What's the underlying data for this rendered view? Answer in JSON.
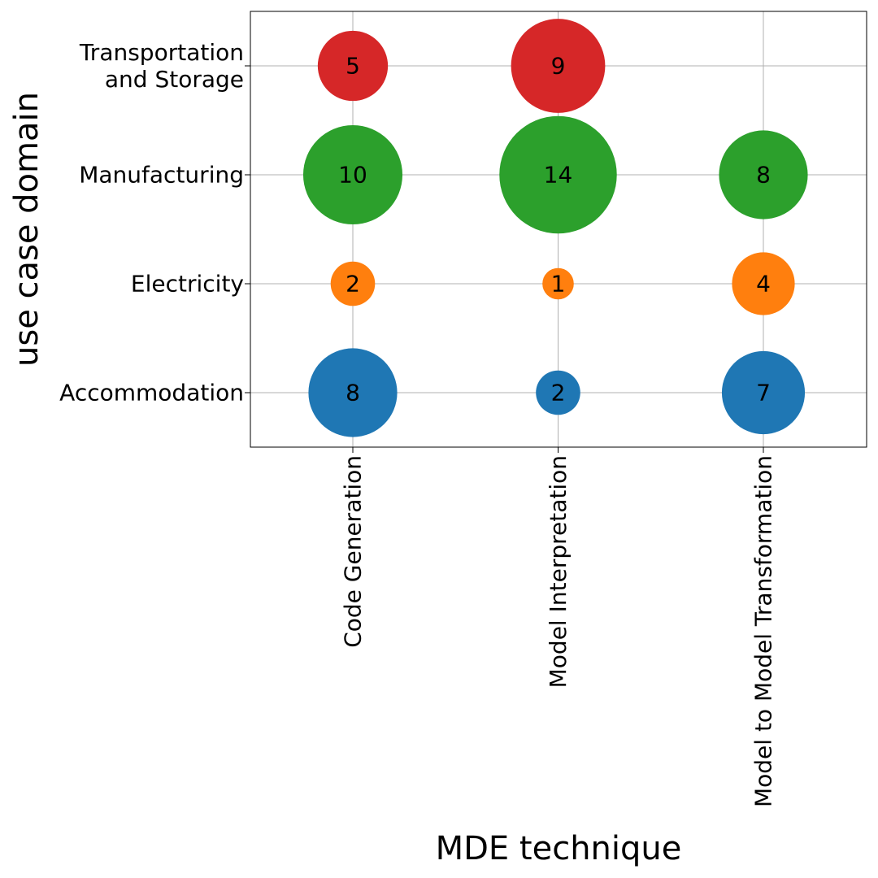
{
  "chart_data": {
    "type": "scatter",
    "xlabel": "MDE technique",
    "ylabel": "use case domain",
    "x_categories": [
      "Code Generation",
      "Model Interpretation",
      "Model to Model Transformation"
    ],
    "y_categories": [
      {
        "lines": [
          "Accommodation"
        ],
        "color": "#1f77b4"
      },
      {
        "lines": [
          "Electricity"
        ],
        "color": "#ff7f0e"
      },
      {
        "lines": [
          "Manufacturing"
        ],
        "color": "#2ca02c"
      },
      {
        "lines": [
          "Transportation",
          "and Storage"
        ],
        "color": "#d62728"
      }
    ],
    "points": [
      {
        "x": "Code Generation",
        "y": "Accommodation",
        "value": 8
      },
      {
        "x": "Model Interpretation",
        "y": "Accommodation",
        "value": 2
      },
      {
        "x": "Model to Model Transformation",
        "y": "Accommodation",
        "value": 7
      },
      {
        "x": "Code Generation",
        "y": "Electricity",
        "value": 2
      },
      {
        "x": "Model Interpretation",
        "y": "Electricity",
        "value": 1
      },
      {
        "x": "Model to Model Transformation",
        "y": "Electricity",
        "value": 4
      },
      {
        "x": "Code Generation",
        "y": "Manufacturing",
        "value": 10
      },
      {
        "x": "Model Interpretation",
        "y": "Manufacturing",
        "value": 14
      },
      {
        "x": "Model to Model Transformation",
        "y": "Manufacturing",
        "value": 8
      },
      {
        "x": "Code Generation",
        "y": "Transportation and Storage",
        "value": 5
      },
      {
        "x": "Model Interpretation",
        "y": "Transportation and Storage",
        "value": 9
      }
    ],
    "grid": true,
    "legend": "none"
  }
}
